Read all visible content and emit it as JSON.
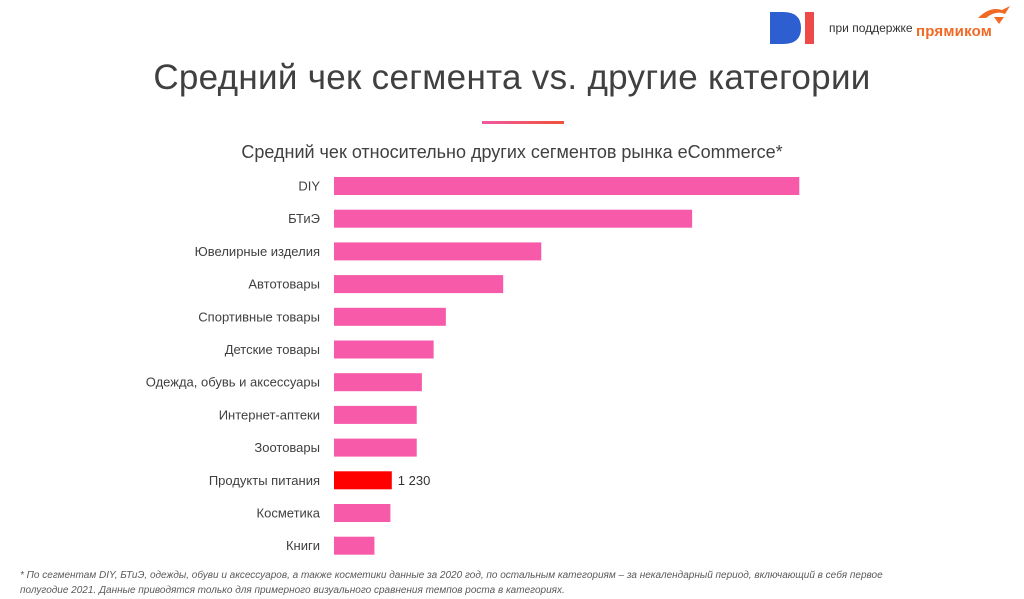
{
  "header": {
    "logo_di_text": "DI",
    "support_text": "при поддержке",
    "logo_partner_text": "прямиком"
  },
  "page": {
    "title": "Средний чек сегмента vs. другие категории"
  },
  "colors": {
    "bar": "#f75aa8",
    "highlight": "#ff0000",
    "logo_blue": "#2d5fd0",
    "logo_red": "#ef4a4a",
    "partner_orange": "#f06a25"
  },
  "chart_data": {
    "type": "bar",
    "orientation": "horizontal",
    "title": "Средний чек относительно других сегментов рынка eCommerce*",
    "categories": [
      "DIY",
      "БТиЭ",
      "Ювелирные изделия",
      "Автотовары",
      "Спортивные товары",
      "Детские товары",
      "Одежда, обувь и аксессуары",
      "Интернет-аптеки",
      "Зоотовары",
      "Продукты питания",
      "Косметика",
      "Книги"
    ],
    "values": [
      9900,
      7620,
      4410,
      3600,
      2380,
      2120,
      1870,
      1760,
      1760,
      1230,
      1200,
      860
    ],
    "data_labels": [
      "",
      "",
      "",
      "",
      "",
      "",
      "",
      "",
      "",
      "1 230",
      "",
      ""
    ],
    "highlight_category": "Продукты питания",
    "xlim": [
      0,
      10000
    ],
    "xlabel": "",
    "ylabel": "",
    "grid": false,
    "legend": "none"
  },
  "footnote": {
    "line1": "* По сегментам DIY, БТиЭ, одежды, обуви и аксессуаров, а также косметики данные за 2020 год, по остальным категориям – за некалендарный период, включающий в себя первое",
    "line2": "полугодие 2021. Данные приводятся только для примерного визуального сравнения темпов роста в категориях."
  }
}
